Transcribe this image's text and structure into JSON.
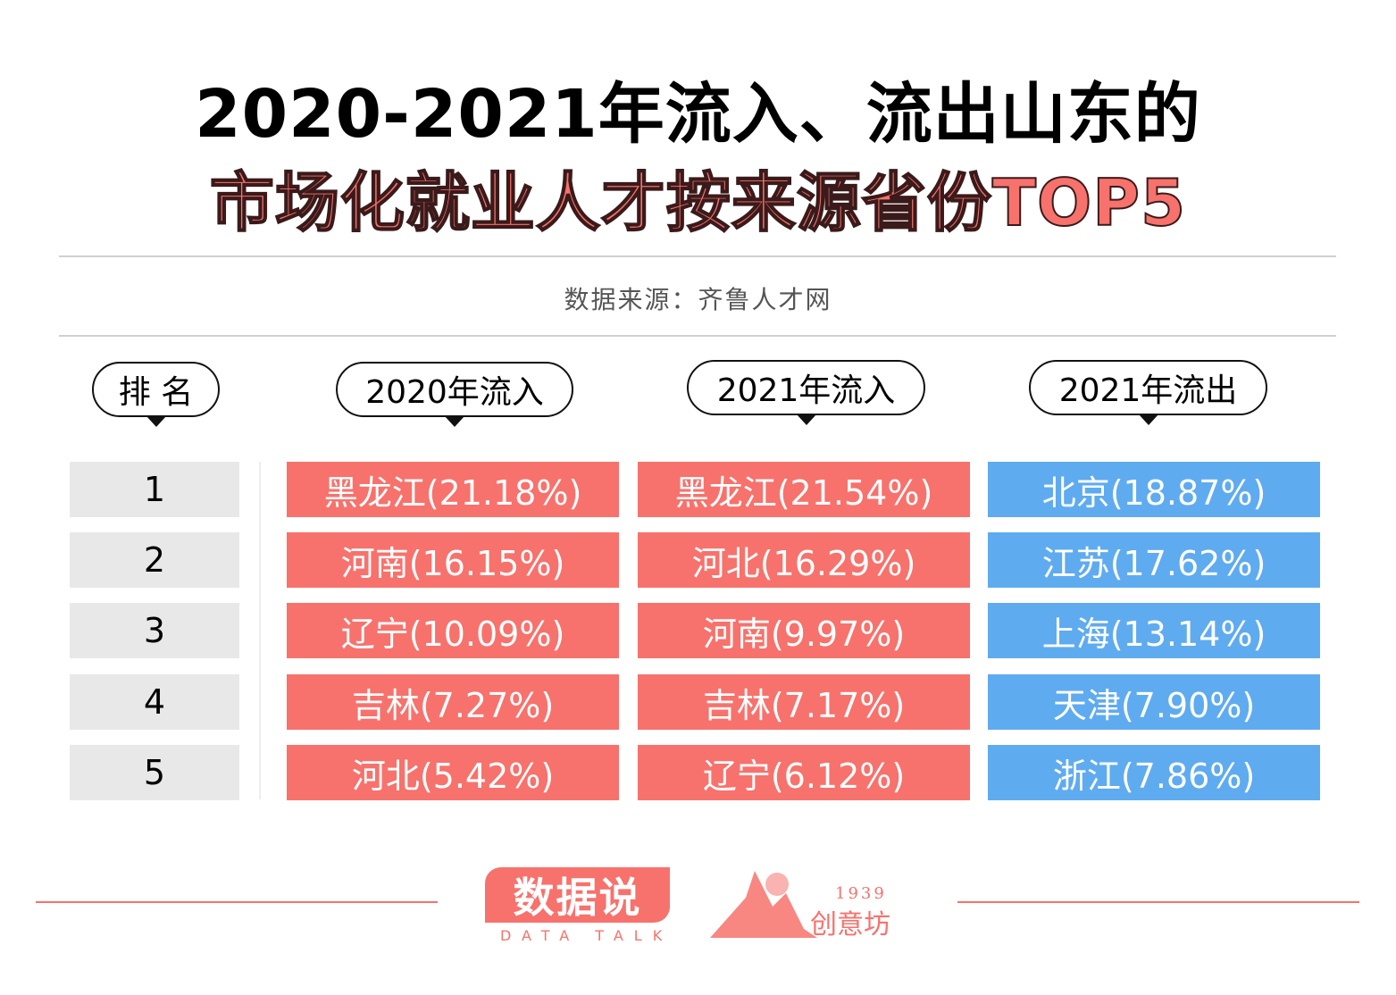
{
  "title": {
    "line1": "2020-2021年流入、流出山东的",
    "line2": "市场化就业人才按来源省份TOP5"
  },
  "source": "数据来源：齐鲁人才网",
  "colors": {
    "inflow": "#f7726c",
    "outflow": "#5fabf0",
    "rank_bg": "#e8e8e8"
  },
  "chart_data": {
    "type": "table",
    "columns": [
      "排 名",
      "2020年流入",
      "2021年流入",
      "2021年流出"
    ],
    "rows": [
      {
        "rank": "1",
        "in2020": "黑龙江(21.18%)",
        "in2021": "黑龙江(21.54%)",
        "out2021": "北京(18.87%)"
      },
      {
        "rank": "2",
        "in2020": "河南(16.15%)",
        "in2021": "河北(16.29%)",
        "out2021": "江苏(17.62%)"
      },
      {
        "rank": "3",
        "in2020": "辽宁(10.09%)",
        "in2021": "河南(9.97%)",
        "out2021": "上海(13.14%)"
      },
      {
        "rank": "4",
        "in2020": "吉林(7.27%)",
        "in2021": "吉林(7.17%)",
        "out2021": "天津(7.90%)"
      },
      {
        "rank": "5",
        "in2020": "河北(5.42%)",
        "in2021": "辽宁(6.12%)",
        "out2021": "浙江(7.86%)"
      }
    ]
  },
  "footer": {
    "logo1": "数据说",
    "logo1_sub": "DATA TALK",
    "logo2_year": "1939",
    "logo2_name": "创意坊"
  }
}
